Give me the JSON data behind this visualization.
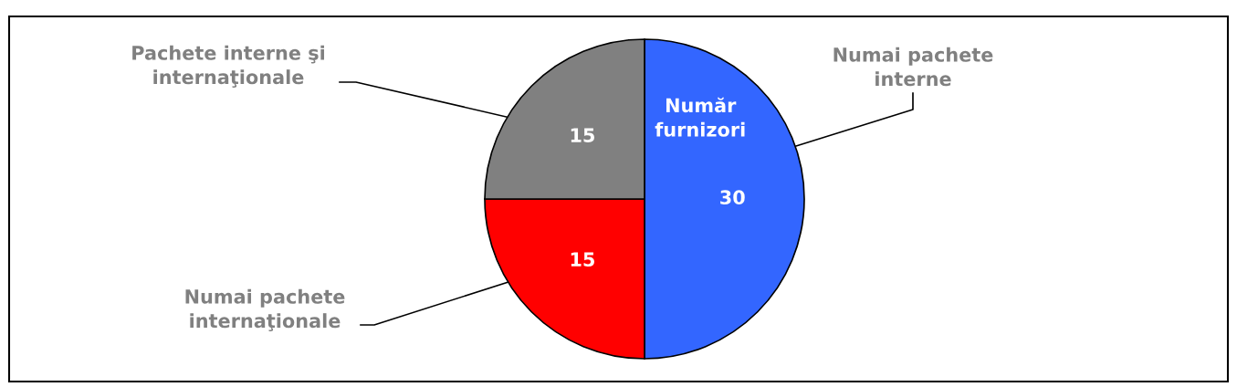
{
  "chart_data": {
    "type": "pie",
    "title": "Număr\nfurnizori",
    "categories": [
      "Numai pachete\ninterne",
      "Numai pachete\ninternaţionale",
      "Pachete interne şi\ninternaţionale"
    ],
    "values": [
      30,
      15,
      15
    ],
    "colors": [
      "#3366ff",
      "#ff0000",
      "#808080"
    ],
    "data_labels": true
  }
}
